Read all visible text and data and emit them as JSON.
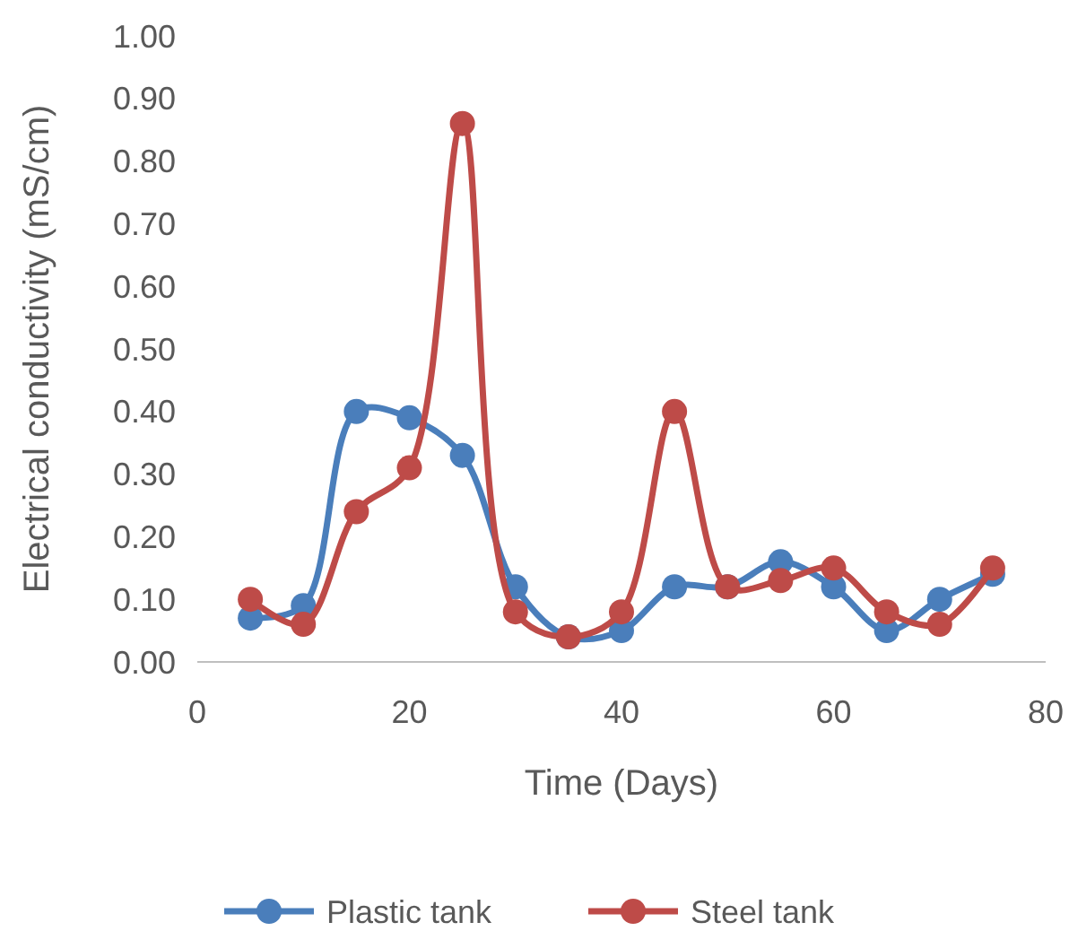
{
  "chart_data": {
    "type": "line",
    "xlabel": "Time (Days)",
    "ylabel": "Electrical conductivity (mS/cm)",
    "x": [
      5,
      10,
      15,
      20,
      25,
      30,
      35,
      40,
      45,
      50,
      55,
      60,
      65,
      70,
      75
    ],
    "series": [
      {
        "name": "Plastic tank",
        "color": "#4a7ebb",
        "values": [
          0.07,
          0.09,
          0.4,
          0.39,
          0.33,
          0.12,
          0.04,
          0.05,
          0.12,
          0.12,
          0.16,
          0.12,
          0.05,
          0.1,
          0.14
        ]
      },
      {
        "name": "Steel tank",
        "color": "#be4b48",
        "values": [
          0.1,
          0.06,
          0.24,
          0.31,
          0.86,
          0.08,
          0.04,
          0.08,
          0.4,
          0.12,
          0.13,
          0.15,
          0.08,
          0.06,
          0.15
        ]
      }
    ],
    "xlim": [
      0,
      80
    ],
    "xticks": [
      0,
      20,
      40,
      60,
      80
    ],
    "ylim": [
      0,
      1
    ],
    "yticks": [
      {
        "value": 0,
        "label": "0.00"
      },
      {
        "value": 0.1,
        "label": "0.10"
      },
      {
        "value": 0.2,
        "label": "0.20"
      },
      {
        "value": 0.3,
        "label": "0.30"
      },
      {
        "value": 0.4,
        "label": "0.40"
      },
      {
        "value": 0.5,
        "label": "0.50"
      },
      {
        "value": 0.6,
        "label": "0.60"
      },
      {
        "value": 0.7,
        "label": "0.70"
      },
      {
        "value": 0.8,
        "label": "0.80"
      },
      {
        "value": 0.9,
        "label": "0.90"
      },
      {
        "value": 1,
        "label": "1.00"
      }
    ],
    "grid": false,
    "legend": "bottom",
    "marker": "circle",
    "line_style": "solid"
  }
}
